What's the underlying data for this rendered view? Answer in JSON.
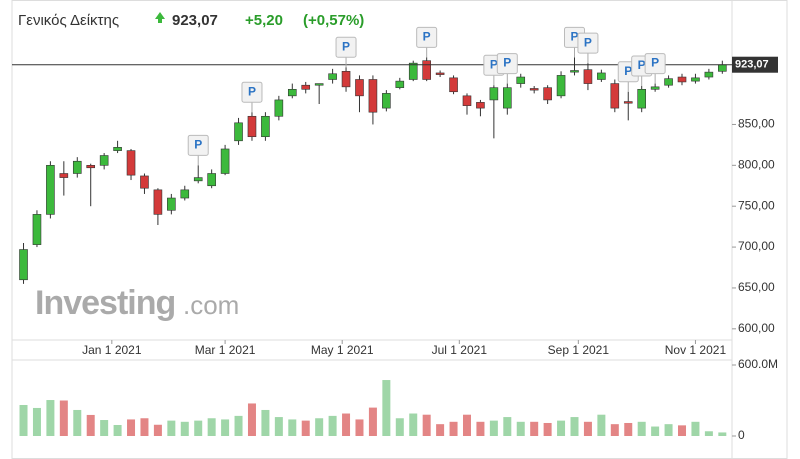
{
  "chart_data": {
    "type": "candlestick",
    "title": "Γενικός Δείκτης",
    "price": "923,07",
    "change": "+5,20",
    "change_pct": "(+0,57%)",
    "watermark": [
      "Investing",
      ".com"
    ],
    "up_color": "#3cb93c",
    "down_color": "#d33a3a",
    "volume_up_color": "#9fd6a8",
    "volume_down_color": "#e38585",
    "x": [
      "2020-11-16",
      "2020-11-23",
      "2020-11-30",
      "2020-12-07",
      "2020-12-14",
      "2020-12-21",
      "2020-12-28",
      "2021-01-04",
      "2021-01-11",
      "2021-01-18",
      "2021-01-25",
      "2021-02-01",
      "2021-02-08",
      "2021-02-15",
      "2021-02-22",
      "2021-03-01",
      "2021-03-08",
      "2021-03-15",
      "2021-03-22",
      "2021-03-29",
      "2021-04-05",
      "2021-04-12",
      "2021-04-19",
      "2021-04-26",
      "2021-05-03",
      "2021-05-10",
      "2021-05-17",
      "2021-05-24",
      "2021-05-31",
      "2021-06-07",
      "2021-06-14",
      "2021-06-21",
      "2021-06-28",
      "2021-07-05",
      "2021-07-12",
      "2021-07-19",
      "2021-07-26",
      "2021-08-02",
      "2021-08-09",
      "2021-08-16",
      "2021-08-23",
      "2021-08-30",
      "2021-09-06",
      "2021-09-13",
      "2021-09-20",
      "2021-09-27",
      "2021-10-04",
      "2021-10-11",
      "2021-10-18",
      "2021-10-25",
      "2021-11-01",
      "2021-11-08",
      "2021-11-15"
    ],
    "open": [
      660,
      703,
      740,
      790,
      790,
      800,
      800,
      818,
      818,
      787,
      770,
      745,
      760,
      781,
      775,
      790,
      830,
      860,
      835,
      860,
      885,
      898,
      898,
      905,
      915,
      905,
      905,
      870,
      895,
      905,
      928,
      913,
      907,
      885,
      877,
      880,
      870,
      900,
      894,
      895,
      885,
      914,
      917,
      905,
      900,
      878,
      870,
      893,
      898,
      908,
      903,
      908,
      915
    ],
    "high": [
      705,
      745,
      805,
      805,
      810,
      802,
      815,
      830,
      820,
      790,
      772,
      765,
      775,
      800,
      795,
      825,
      858,
      865,
      865,
      885,
      900,
      902,
      900,
      918,
      920,
      910,
      910,
      892,
      907,
      928,
      932,
      916,
      910,
      888,
      880,
      898,
      900,
      912,
      897,
      898,
      915,
      932,
      925,
      917,
      905,
      890,
      897,
      900,
      910,
      912,
      912,
      918,
      928
    ],
    "low": [
      655,
      700,
      735,
      763,
      785,
      750,
      795,
      815,
      782,
      765,
      727,
      740,
      757,
      778,
      772,
      788,
      825,
      830,
      830,
      855,
      882,
      888,
      875,
      900,
      890,
      865,
      850,
      866,
      893,
      903,
      903,
      908,
      887,
      862,
      860,
      833,
      862,
      895,
      888,
      875,
      882,
      910,
      892,
      902,
      865,
      855,
      865,
      890,
      895,
      898,
      900,
      905,
      912
    ],
    "close": [
      697,
      740,
      800,
      785,
      805,
      797,
      812,
      822,
      788,
      772,
      740,
      760,
      770,
      785,
      790,
      820,
      852,
      835,
      860,
      880,
      893,
      893,
      900,
      912,
      896,
      885,
      865,
      888,
      903,
      925,
      905,
      911,
      890,
      873,
      870,
      895,
      895,
      908,
      892,
      880,
      910,
      916,
      900,
      913,
      870,
      876,
      893,
      896,
      906,
      902,
      907,
      914,
      923.07
    ],
    "volume": [
      262,
      237,
      304,
      300,
      220,
      178,
      135,
      93,
      140,
      150,
      95,
      130,
      120,
      130,
      150,
      140,
      170,
      275,
      220,
      160,
      140,
      130,
      150,
      170,
      190,
      140,
      240,
      473,
      150,
      190,
      180,
      100,
      120,
      180,
      120,
      130,
      160,
      120,
      120,
      110,
      130,
      160,
      120,
      180,
      100,
      110,
      120,
      80,
      100,
      90,
      120,
      40,
      30
    ],
    "markers": [
      {
        "x": "2021-02-15",
        "label": "P"
      },
      {
        "x": "2021-03-15",
        "label": "P"
      },
      {
        "x": "2021-05-03",
        "label": "P"
      },
      {
        "x": "2021-06-14",
        "label": "P"
      },
      {
        "x": "2021-07-19",
        "label": "P"
      },
      {
        "x": "2021-07-26",
        "label": "P"
      },
      {
        "x": "2021-08-30",
        "label": "P"
      },
      {
        "x": "2021-09-06",
        "label": "P"
      },
      {
        "x": "2021-09-27",
        "label": "P"
      },
      {
        "x": "2021-10-04",
        "label": "P"
      },
      {
        "x": "2021-10-11",
        "label": "P"
      }
    ],
    "last": {
      "value": 923.07,
      "label": "923,07"
    },
    "xlim": [
      "2020-11-10",
      "2021-11-19"
    ],
    "xticks": [
      {
        "value": "2021-01-01",
        "label": "Jan 1 2021"
      },
      {
        "value": "2021-03-01",
        "label": "Mar 1 2021"
      },
      {
        "value": "2021-05-01",
        "label": "May 1 2021"
      },
      {
        "value": "2021-07-01",
        "label": "Jul 1 2021"
      },
      {
        "value": "2021-09-01",
        "label": "Sep 1 2021"
      },
      {
        "value": "2021-11-01",
        "label": "Nov 1 2021"
      }
    ],
    "ylim": [
      590,
      990
    ],
    "yticks": [
      {
        "value": 600,
        "label": "600,00"
      },
      {
        "value": 650,
        "label": "650,00"
      },
      {
        "value": 700,
        "label": "700,00"
      },
      {
        "value": 750,
        "label": "750,00"
      },
      {
        "value": 800,
        "label": "800,00"
      },
      {
        "value": 850,
        "label": "850,00"
      }
    ],
    "volume_ylim": [
      0,
      600
    ],
    "volume_yticks": [
      0,
      {
        "value": 600,
        "label": "600.0M"
      }
    ]
  }
}
